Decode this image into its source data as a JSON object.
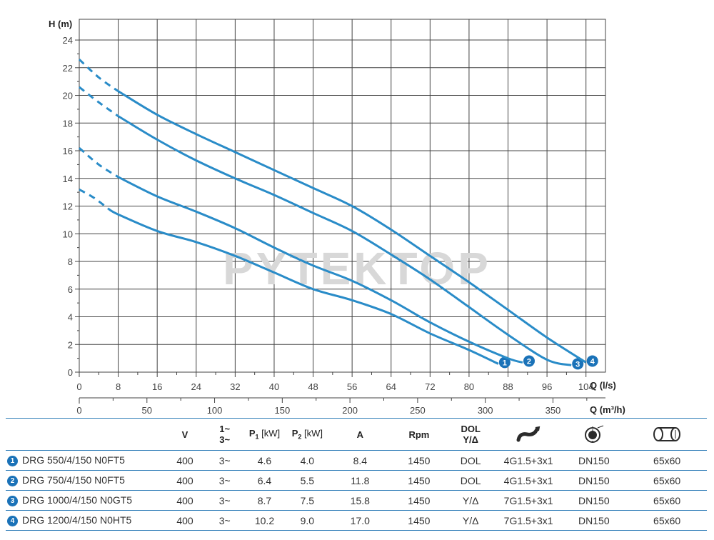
{
  "chart_data": {
    "type": "line",
    "ylabel": "H (m)",
    "xlabel": "Q (l/s)",
    "xlabel2": "Q (m³/h)",
    "xlim": [
      0,
      108
    ],
    "ylim": [
      0,
      25.5
    ],
    "x_ticks": [
      "0",
      "8",
      "16",
      "24",
      "32",
      "40",
      "48",
      "56",
      "64",
      "72",
      "80",
      "88",
      "96",
      "104"
    ],
    "x2_ticks": [
      "0",
      "50",
      "100",
      "150",
      "200",
      "250",
      "300",
      "350"
    ],
    "y_ticks": [
      "0",
      "2",
      "4",
      "6",
      "8",
      "10",
      "12",
      "14",
      "16",
      "18",
      "20",
      "22",
      "24"
    ],
    "grid": true,
    "watermark": "PYTEKTOP",
    "series": [
      {
        "name": "1",
        "dashed": [
          [
            0,
            13.2
          ],
          [
            3,
            12.6
          ],
          [
            6,
            11.8
          ]
        ],
        "values": [
          [
            6,
            11.8
          ],
          [
            8,
            11.4
          ],
          [
            16,
            10.2
          ],
          [
            24,
            9.4
          ],
          [
            32,
            8.4
          ],
          [
            40,
            7.2
          ],
          [
            48,
            6.0
          ],
          [
            56,
            5.2
          ],
          [
            64,
            4.2
          ],
          [
            72,
            2.8
          ],
          [
            80,
            1.6
          ],
          [
            86,
            0.6
          ]
        ]
      },
      {
        "name": "2",
        "dashed": [
          [
            0,
            16.2
          ],
          [
            4,
            15.0
          ],
          [
            8,
            14.1
          ]
        ],
        "values": [
          [
            8,
            14.1
          ],
          [
            16,
            12.7
          ],
          [
            24,
            11.6
          ],
          [
            32,
            10.4
          ],
          [
            40,
            9.0
          ],
          [
            48,
            7.7
          ],
          [
            56,
            6.6
          ],
          [
            64,
            5.2
          ],
          [
            72,
            3.6
          ],
          [
            80,
            2.2
          ],
          [
            88,
            1.0
          ],
          [
            91,
            0.7
          ]
        ]
      },
      {
        "name": "3",
        "dashed": [
          [
            0,
            20.6
          ],
          [
            4,
            19.5
          ],
          [
            8,
            18.5
          ]
        ],
        "values": [
          [
            8,
            18.5
          ],
          [
            16,
            16.8
          ],
          [
            24,
            15.3
          ],
          [
            32,
            14.0
          ],
          [
            40,
            12.8
          ],
          [
            48,
            11.5
          ],
          [
            56,
            10.2
          ],
          [
            64,
            8.5
          ],
          [
            72,
            6.7
          ],
          [
            80,
            4.7
          ],
          [
            88,
            2.7
          ],
          [
            96,
            0.9
          ],
          [
            101,
            0.5
          ]
        ]
      },
      {
        "name": "4",
        "dashed": [
          [
            0,
            22.6
          ],
          [
            4,
            21.3
          ],
          [
            8,
            20.3
          ]
        ],
        "values": [
          [
            8,
            20.3
          ],
          [
            16,
            18.6
          ],
          [
            24,
            17.2
          ],
          [
            32,
            15.9
          ],
          [
            40,
            14.6
          ],
          [
            48,
            13.3
          ],
          [
            56,
            12.0
          ],
          [
            64,
            10.3
          ],
          [
            72,
            8.4
          ],
          [
            80,
            6.5
          ],
          [
            88,
            4.5
          ],
          [
            96,
            2.5
          ],
          [
            104,
            0.7
          ]
        ]
      }
    ],
    "colors": {
      "curve": "#2a8cc8",
      "grid": "#444444",
      "badge": "#1a72b8"
    }
  },
  "table": {
    "headers": {
      "voltage": "V",
      "phase_top": "1~",
      "phase_bottom": "3~",
      "p1": "P",
      "p1_sub": "1",
      "p1_unit": "[kW]",
      "p2": "P",
      "p2_sub": "2",
      "p2_unit": "[kW]",
      "current": "A",
      "rpm": "Rpm",
      "start_top": "DOL",
      "start_bottom": "Y/Δ",
      "cable_icon": "cable-icon",
      "outlet_icon": "outlet-flange-icon",
      "dimensions_icon": "dimensions-icon"
    },
    "rows": [
      {
        "badge": "1",
        "model": "DRG 550/4/150 N0FT5",
        "v": "400",
        "phase": "3~",
        "p1": "4.6",
        "p2": "4.0",
        "a": "8.4",
        "rpm": "1450",
        "start": "DOL",
        "cable": "4G1.5+3x1",
        "outlet": "DN150",
        "dim": "65x60"
      },
      {
        "badge": "2",
        "model": "DRG 750/4/150 N0FT5",
        "v": "400",
        "phase": "3~",
        "p1": "6.4",
        "p2": "5.5",
        "a": "11.8",
        "rpm": "1450",
        "start": "DOL",
        "cable": "4G1.5+3x1",
        "outlet": "DN150",
        "dim": "65x60"
      },
      {
        "badge": "3",
        "model": "DRG 1000/4/150 N0GT5",
        "v": "400",
        "phase": "3~",
        "p1": "8.7",
        "p2": "7.5",
        "a": "15.8",
        "rpm": "1450",
        "start": "Y/Δ",
        "cable": "7G1.5+3x1",
        "outlet": "DN150",
        "dim": "65x60"
      },
      {
        "badge": "4",
        "model": "DRG 1200/4/150 N0HT5",
        "v": "400",
        "phase": "3~",
        "p1": "10.2",
        "p2": "9.0",
        "a": "17.0",
        "rpm": "1450",
        "start": "Y/Δ",
        "cable": "7G1.5+3x1",
        "outlet": "DN150",
        "dim": "65x60"
      }
    ]
  }
}
